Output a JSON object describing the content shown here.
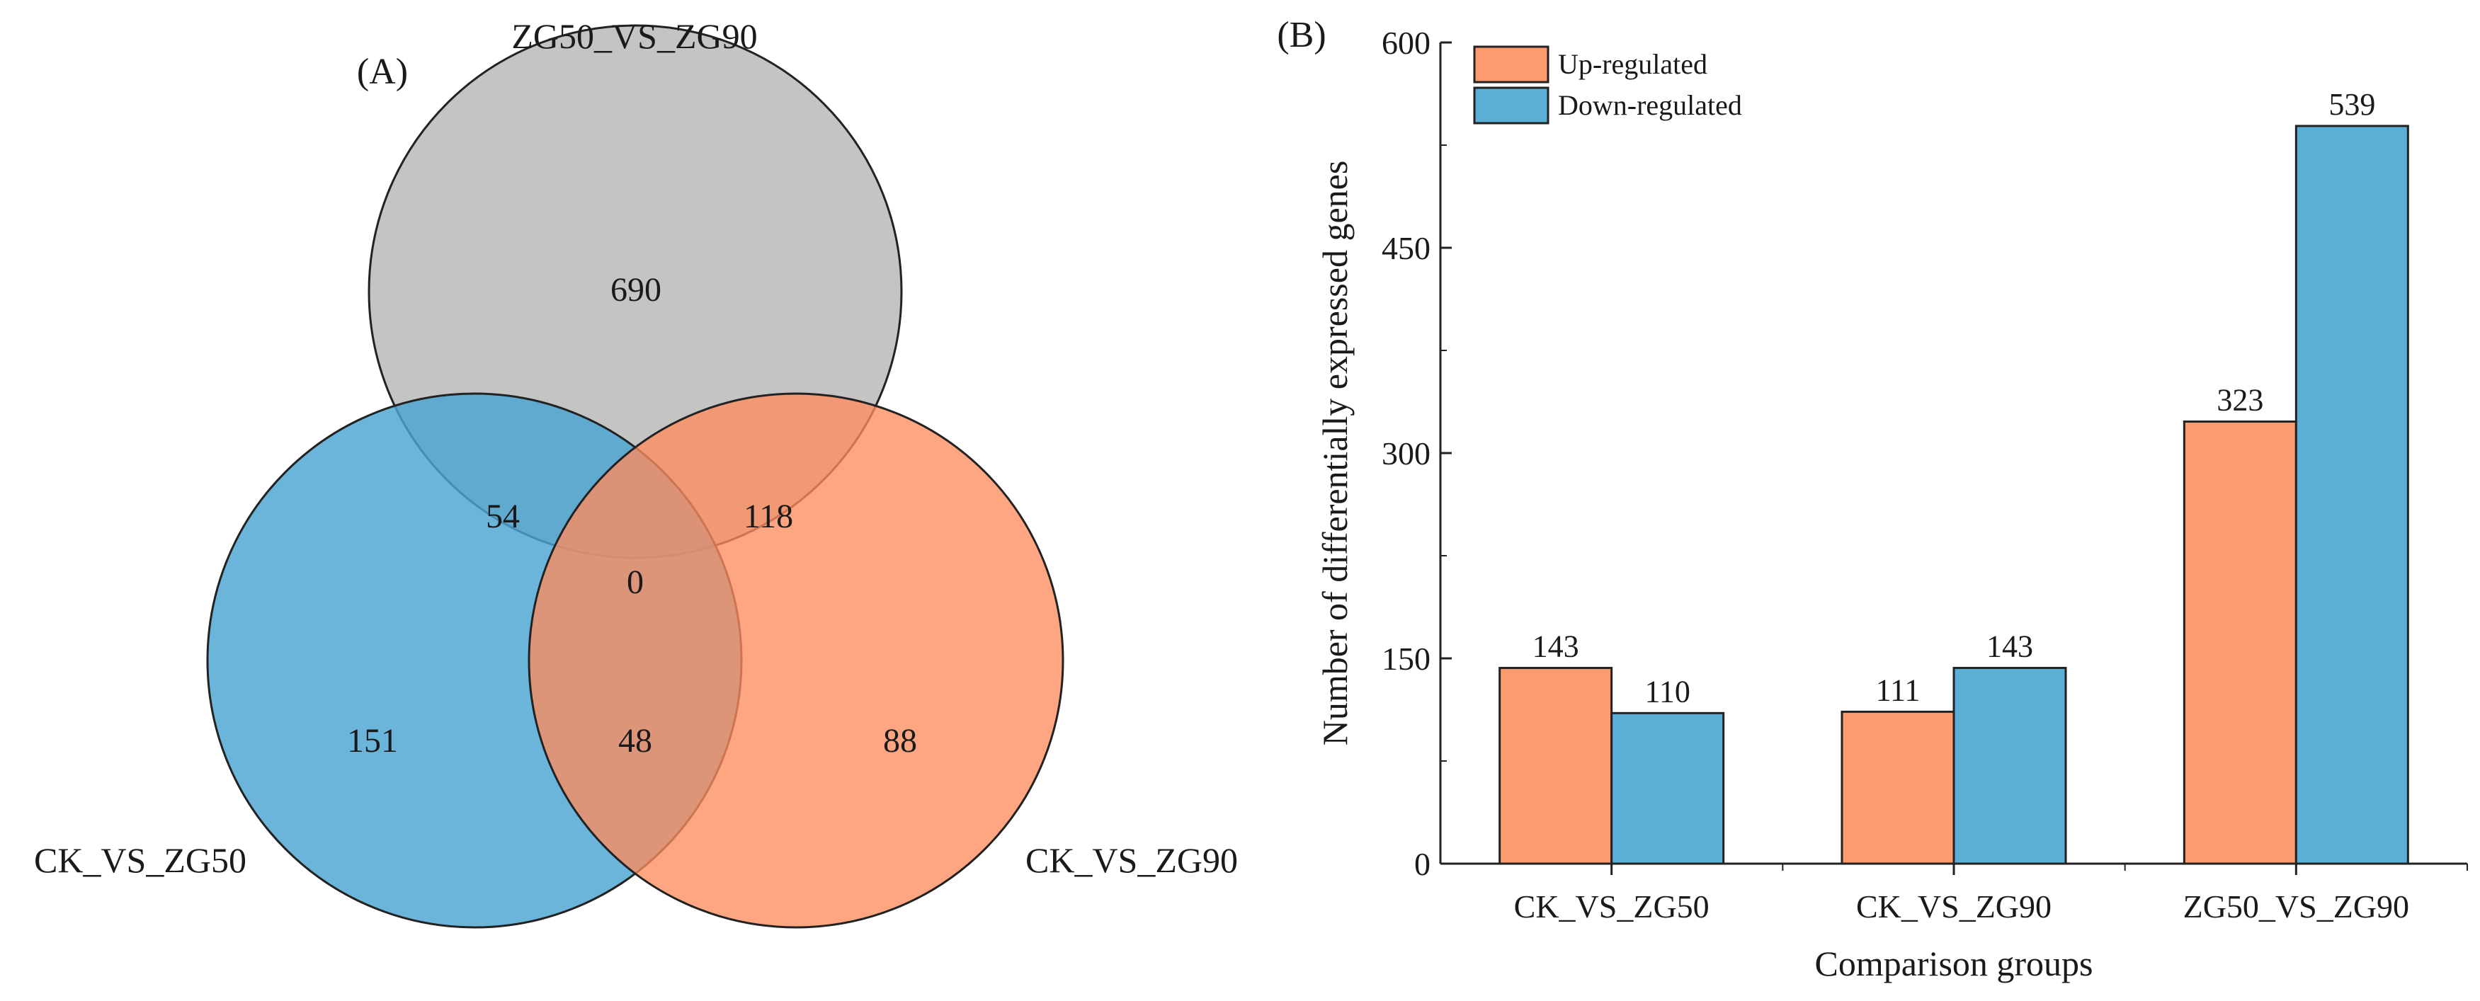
{
  "panel_a": {
    "letter": "(A)",
    "sets": [
      {
        "key": "top",
        "label": "ZG50_VS_ZG90",
        "color": "#BEBEBE"
      },
      {
        "key": "left",
        "label": "CK_VS_ZG50",
        "color": "#4BA5D3"
      },
      {
        "key": "right",
        "label": "CK_VS_ZG90",
        "color": "#FE8C5E"
      }
    ],
    "regions": {
      "top_only": "690",
      "left_only": "151",
      "right_only": "88",
      "top_left": "54",
      "top_right": "118",
      "left_right": "48",
      "all_three": "0"
    }
  },
  "panel_b": {
    "letter": "(B)"
  },
  "chart_data": {
    "type": "bar",
    "categories": [
      "CK_VS_ZG50",
      "CK_VS_ZG90",
      "ZG50_VS_ZG90"
    ],
    "series": [
      {
        "name": "Up-regulated",
        "values": [
          143,
          111,
          323
        ],
        "color": "#FE9B6E"
      },
      {
        "name": "Down-regulated",
        "values": [
          110,
          143,
          539
        ],
        "color": "#5BAED6"
      }
    ],
    "xlabel": "Comparison groups",
    "ylabel": "Number of differentially expressed genes",
    "ylim": [
      0,
      600
    ],
    "yticks": [
      0,
      150,
      300,
      450,
      600
    ],
    "legend_position": "top-left",
    "data_labels": true,
    "grid": false
  }
}
